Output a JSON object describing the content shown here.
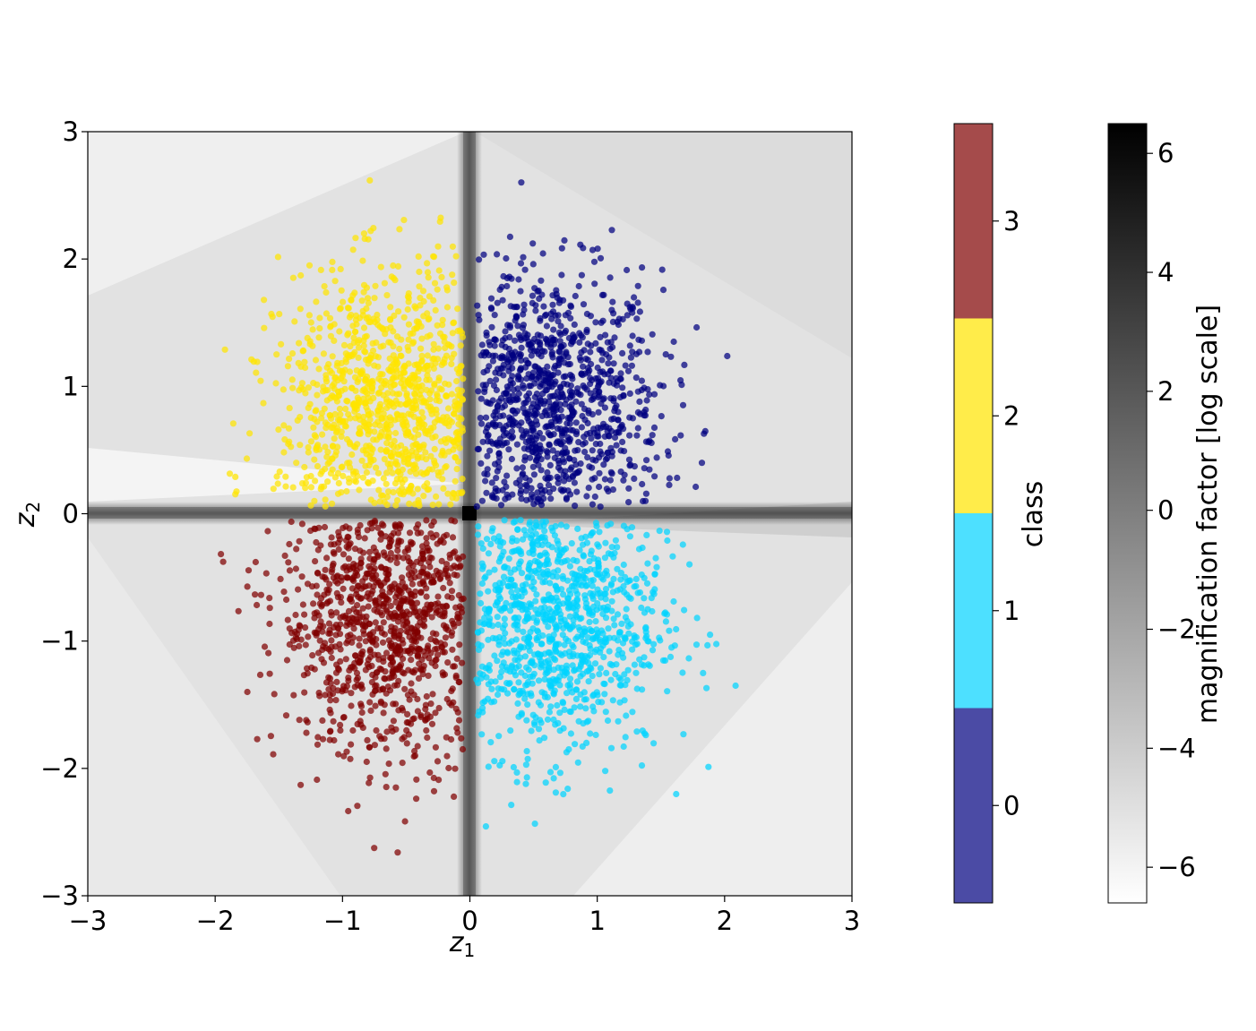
{
  "chart_data": {
    "type": "scatter",
    "title": "",
    "xlabel": "z",
    "xlabel_sub": "1",
    "ylabel": "z",
    "ylabel_sub": "2",
    "xlim": [
      -3,
      3
    ],
    "ylim": [
      -3,
      3
    ],
    "xticks": [
      -3,
      -2,
      -1,
      0,
      1,
      2,
      3
    ],
    "yticks": [
      -3,
      -2,
      -1,
      0,
      1,
      2,
      3
    ],
    "xtick_labels": [
      "−3",
      "−2",
      "−1",
      "0",
      "1",
      "2",
      "3"
    ],
    "ytick_labels": [
      "−3",
      "−2",
      "−1",
      "0",
      "1",
      "2",
      "3"
    ],
    "grid": false,
    "background": "grayscale magnification-factor field, darkest along z1 = 0 and z2 = 0",
    "series": [
      {
        "class": 0,
        "color": "#00007f",
        "quadrant": "z1 > 0, z2 > 0",
        "n_points": 1000,
        "mean": [
          0.6,
          0.8
        ],
        "spread": [
          0.45,
          0.55
        ]
      },
      {
        "class": 1,
        "color": "#00d4ff",
        "quadrant": "z1 > 0, z2 < 0",
        "n_points": 1000,
        "mean": [
          0.6,
          -0.8
        ],
        "spread": [
          0.45,
          0.55
        ]
      },
      {
        "class": 2,
        "color": "#ffe500",
        "quadrant": "z1 < 0, z2 > 0",
        "n_points": 1000,
        "mean": [
          -0.6,
          0.8
        ],
        "spread": [
          0.45,
          0.55
        ]
      },
      {
        "class": 3,
        "color": "#7f0000",
        "quadrant": "z1 < 0, z2 < 0",
        "n_points": 1000,
        "mean": [
          -0.6,
          -0.8
        ],
        "spread": [
          0.45,
          0.55
        ]
      }
    ],
    "class_colorbar": {
      "label": "class",
      "ticks": [
        "0",
        "1",
        "2",
        "3"
      ],
      "colors": [
        "#4b4ba5",
        "#4de0ff",
        "#ffec4a",
        "#a54b4b"
      ]
    },
    "magnification_colorbar": {
      "label": "magnification factor [log scale]",
      "range": [
        -6.6,
        6.5
      ],
      "ticks": [
        -6,
        -4,
        -2,
        0,
        2,
        4,
        6
      ],
      "tick_labels": [
        "−6",
        "−4",
        "−2",
        "0",
        "2",
        "4",
        "6"
      ],
      "colormap": "white-to-black"
    }
  }
}
